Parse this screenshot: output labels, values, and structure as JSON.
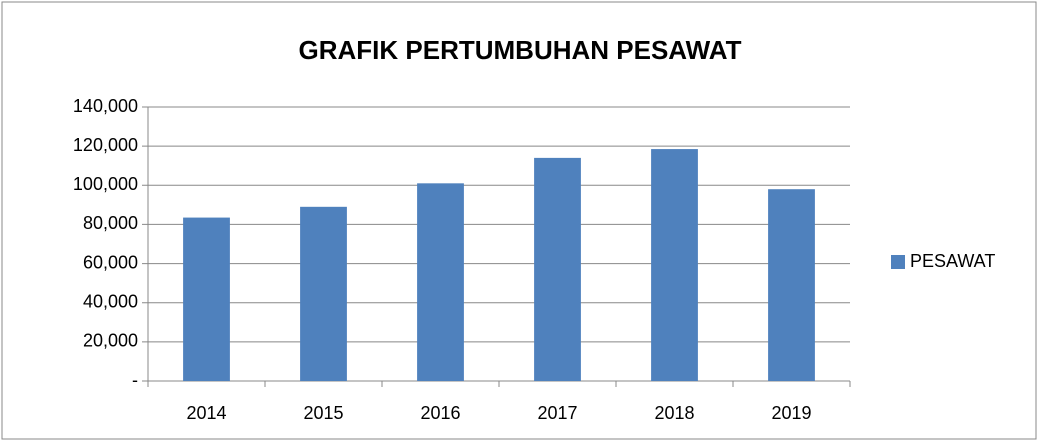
{
  "chart_data": {
    "type": "bar",
    "title": "GRAFIK PERTUMBUHAN PESAWAT",
    "categories": [
      "2014",
      "2015",
      "2016",
      "2017",
      "2018",
      "2019"
    ],
    "series": [
      {
        "name": "PESAWAT",
        "color": "#4f81bd",
        "values": [
          83500,
          89000,
          101000,
          114000,
          118500,
          98000
        ]
      }
    ],
    "ylim": [
      0,
      140000
    ],
    "yticks": [
      {
        "value": 0,
        "label": "-"
      },
      {
        "value": 20000,
        "label": "20,000"
      },
      {
        "value": 40000,
        "label": "40,000"
      },
      {
        "value": 60000,
        "label": "60,000"
      },
      {
        "value": 80000,
        "label": "80,000"
      },
      {
        "value": 100000,
        "label": "100,000"
      },
      {
        "value": 120000,
        "label": "120,000"
      },
      {
        "value": 140000,
        "label": "140,000"
      }
    ],
    "grid": true,
    "legend": "right"
  }
}
